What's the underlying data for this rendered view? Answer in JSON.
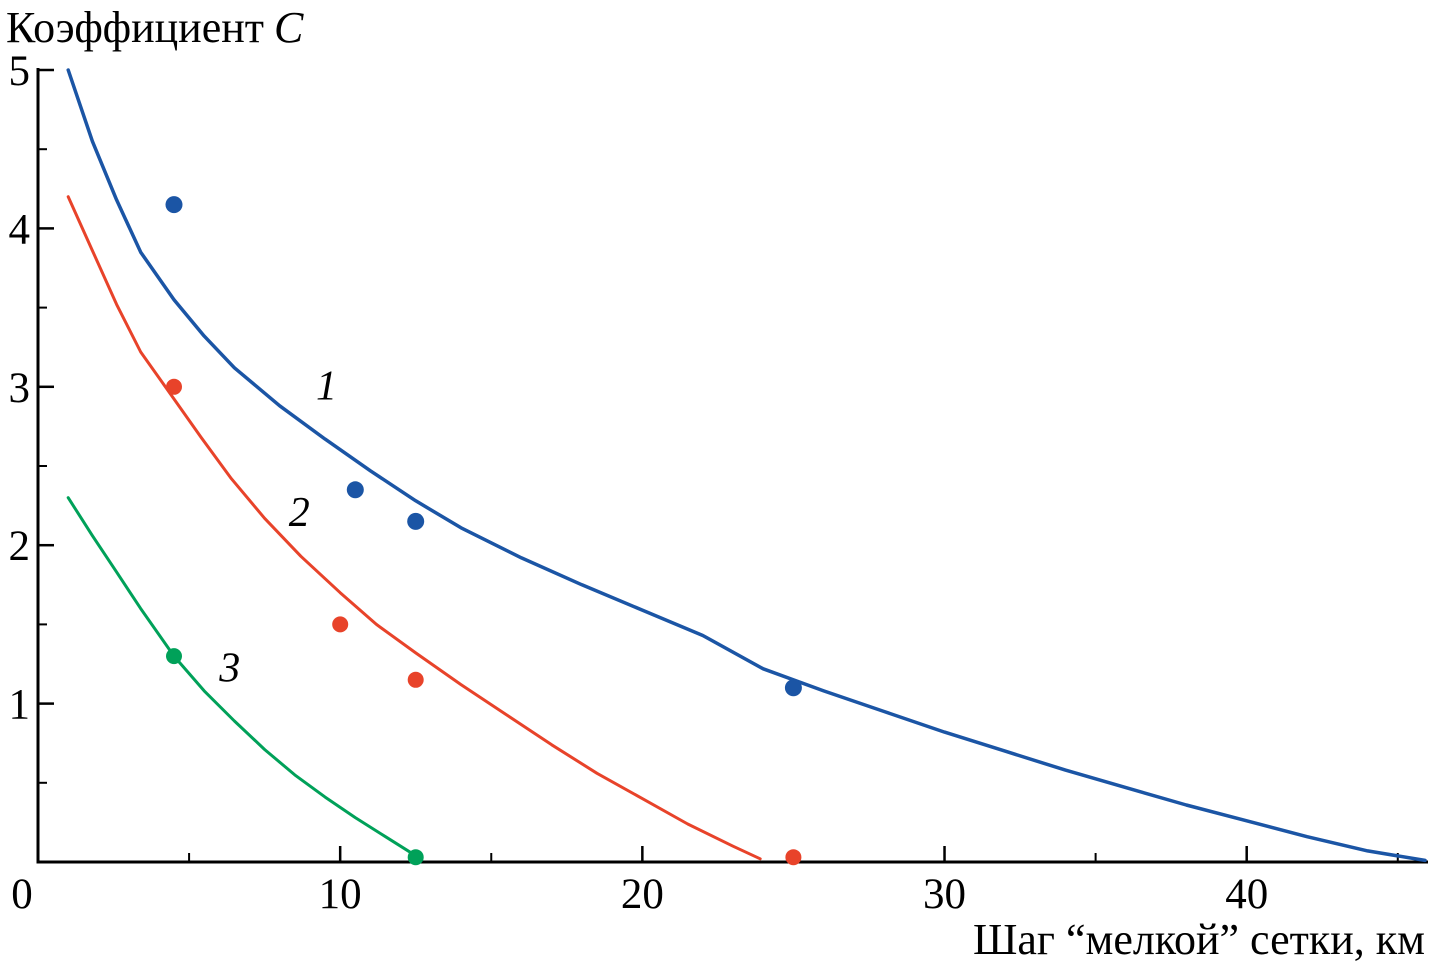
{
  "chart_data": {
    "type": "line",
    "title": {
      "text": "Коэффициент",
      "variable": "C"
    },
    "xlabel": "Шаг “мелкой” сетки, км",
    "xlim": [
      0,
      46
    ],
    "ylim": [
      0,
      5
    ],
    "grid": false,
    "axis_color": "#000000",
    "background": "#ffffff",
    "xticks": {
      "major": [
        10,
        20,
        30,
        40
      ],
      "minor": [
        5,
        15,
        25,
        35,
        45
      ],
      "origin_label": "0"
    },
    "yticks": {
      "major": [
        1,
        2,
        3,
        4,
        5
      ],
      "minor": [
        0.5,
        1.5,
        2.5,
        3.5,
        4.5
      ]
    },
    "series": [
      {
        "name": "curve-1",
        "label": "1",
        "color": "#1b55a5",
        "width": 3.5,
        "points": [
          [
            1.0,
            5.0
          ],
          [
            1.8,
            4.55
          ],
          [
            2.6,
            4.18
          ],
          [
            3.4,
            3.85
          ],
          [
            4.5,
            3.55
          ],
          [
            5.5,
            3.32
          ],
          [
            6.5,
            3.12
          ],
          [
            8.0,
            2.88
          ],
          [
            9.5,
            2.67
          ],
          [
            11.0,
            2.47
          ],
          [
            12.5,
            2.28
          ],
          [
            14.0,
            2.11
          ],
          [
            16.0,
            1.92
          ],
          [
            18.0,
            1.75
          ],
          [
            20.0,
            1.59
          ],
          [
            22.0,
            1.43
          ],
          [
            24.0,
            1.22
          ],
          [
            26.0,
            1.08
          ],
          [
            28.0,
            0.95
          ],
          [
            30.0,
            0.82
          ],
          [
            32.0,
            0.7
          ],
          [
            34.0,
            0.58
          ],
          [
            36.0,
            0.47
          ],
          [
            38.0,
            0.36
          ],
          [
            40.0,
            0.26
          ],
          [
            42.0,
            0.16
          ],
          [
            44.0,
            0.07
          ],
          [
            45.9,
            0.01
          ]
        ]
      },
      {
        "name": "curve-2",
        "label": "2",
        "color": "#e8432a",
        "width": 3,
        "points": [
          [
            1.0,
            4.2
          ],
          [
            1.8,
            3.86
          ],
          [
            2.6,
            3.52
          ],
          [
            3.4,
            3.22
          ],
          [
            4.4,
            2.95
          ],
          [
            5.4,
            2.68
          ],
          [
            6.4,
            2.42
          ],
          [
            7.5,
            2.17
          ],
          [
            8.7,
            1.93
          ],
          [
            10.0,
            1.7
          ],
          [
            11.2,
            1.5
          ],
          [
            12.5,
            1.32
          ],
          [
            14.0,
            1.12
          ],
          [
            15.5,
            0.93
          ],
          [
            17.0,
            0.74
          ],
          [
            18.5,
            0.56
          ],
          [
            20.0,
            0.4
          ],
          [
            21.5,
            0.24
          ],
          [
            23.0,
            0.1
          ],
          [
            23.9,
            0.02
          ]
        ]
      },
      {
        "name": "curve-3",
        "label": "3",
        "color": "#00a159",
        "width": 3,
        "points": [
          [
            1.0,
            2.3
          ],
          [
            1.8,
            2.06
          ],
          [
            2.6,
            1.83
          ],
          [
            3.4,
            1.6
          ],
          [
            4.5,
            1.3
          ],
          [
            5.5,
            1.08
          ],
          [
            6.5,
            0.89
          ],
          [
            7.5,
            0.71
          ],
          [
            8.5,
            0.55
          ],
          [
            9.5,
            0.41
          ],
          [
            10.5,
            0.28
          ],
          [
            11.5,
            0.16
          ],
          [
            12.5,
            0.04
          ]
        ]
      }
    ],
    "scatter": [
      {
        "name": "dots-series-1",
        "color": "#1b55a5",
        "r": 8.5,
        "points": [
          [
            4.5,
            4.15
          ],
          [
            10.5,
            2.35
          ],
          [
            12.5,
            2.15
          ],
          [
            25,
            1.1
          ]
        ]
      },
      {
        "name": "dots-series-2",
        "color": "#e8432a",
        "r": 8,
        "points": [
          [
            4.5,
            3.0
          ],
          [
            10.0,
            1.5
          ],
          [
            12.5,
            1.15
          ],
          [
            25,
            0.03
          ]
        ]
      },
      {
        "name": "dots-series-3",
        "color": "#00a159",
        "r": 8,
        "points": [
          [
            4.5,
            1.3
          ],
          [
            12.5,
            0.03
          ]
        ]
      }
    ],
    "annotations": [
      {
        "text": "1",
        "x": 9.2,
        "y": 2.92
      },
      {
        "text": "2",
        "x": 8.3,
        "y": 2.12
      },
      {
        "text": "3",
        "x": 6.0,
        "y": 1.14
      }
    ]
  }
}
